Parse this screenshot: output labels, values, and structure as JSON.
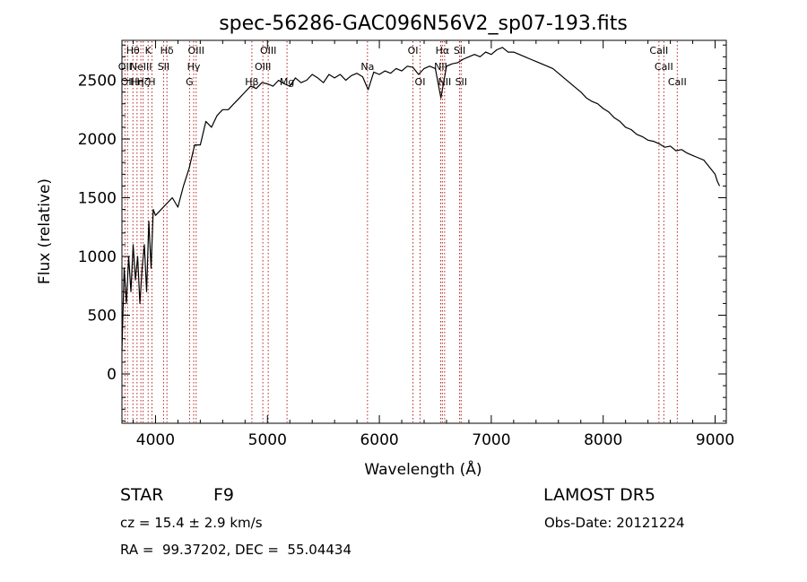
{
  "chart_data": {
    "type": "line",
    "title": "spec-56286-GAC096N56V2_sp07-193.fits",
    "xlabel": "Wavelength (Å)",
    "ylabel": "Flux (relative)",
    "xlim": [
      3700,
      9100
    ],
    "ylim": [
      -420,
      2840
    ],
    "x_ticks": [
      "4000",
      "5000",
      "6000",
      "7000",
      "8000",
      "9000"
    ],
    "y_ticks": [
      "0",
      "500",
      "1000",
      "1500",
      "2000",
      "2500"
    ],
    "grid": false,
    "series": [
      {
        "x": [
          3700,
          3720,
          3740,
          3760,
          3780,
          3800,
          3820,
          3840,
          3860,
          3880,
          3900,
          3920,
          3940,
          3960,
          3980,
          4000,
          4050,
          4100,
          4150,
          4200,
          4250,
          4300,
          4350,
          4400,
          4450,
          4500,
          4550,
          4600,
          4650,
          4700,
          4750,
          4800,
          4850,
          4900,
          4950,
          5000,
          5050,
          5100,
          5150,
          5200,
          5250,
          5300,
          5350,
          5400,
          5450,
          5500,
          5550,
          5600,
          5650,
          5700,
          5750,
          5800,
          5850,
          5900,
          5950,
          6000,
          6050,
          6100,
          6150,
          6200,
          6250,
          6300,
          6350,
          6400,
          6450,
          6500,
          6550,
          6600,
          6650,
          6700,
          6750,
          6800,
          6850,
          6900,
          6950,
          7000,
          7050,
          7100,
          7150,
          7200,
          7250,
          7300,
          7350,
          7400,
          7450,
          7500,
          7550,
          7600,
          7650,
          7700,
          7750,
          7800,
          7850,
          7900,
          7950,
          8000,
          8050,
          8100,
          8150,
          8200,
          8250,
          8300,
          8350,
          8400,
          8450,
          8500,
          8550,
          8600,
          8650,
          8700,
          8750,
          8800,
          8850,
          8900,
          8950,
          9000,
          9020,
          9040
        ],
        "y": [
          200,
          900,
          600,
          1000,
          700,
          1100,
          800,
          1000,
          600,
          900,
          1100,
          700,
          1300,
          900,
          1400,
          1350,
          1400,
          1450,
          1500,
          1420,
          1600,
          1750,
          1950,
          1950,
          2150,
          2100,
          2200,
          2250,
          2250,
          2300,
          2350,
          2400,
          2450,
          2430,
          2480,
          2470,
          2450,
          2500,
          2470,
          2450,
          2520,
          2480,
          2500,
          2550,
          2520,
          2480,
          2550,
          2520,
          2550,
          2500,
          2540,
          2560,
          2530,
          2420,
          2570,
          2550,
          2580,
          2560,
          2600,
          2580,
          2620,
          2610,
          2550,
          2600,
          2620,
          2600,
          2350,
          2620,
          2640,
          2650,
          2680,
          2700,
          2720,
          2700,
          2740,
          2720,
          2760,
          2780,
          2740,
          2740,
          2720,
          2700,
          2680,
          2660,
          2640,
          2620,
          2600,
          2560,
          2520,
          2480,
          2440,
          2400,
          2350,
          2320,
          2300,
          2260,
          2230,
          2180,
          2150,
          2100,
          2080,
          2040,
          2020,
          1990,
          1980,
          1960,
          1930,
          1940,
          1900,
          1910,
          1880,
          1860,
          1840,
          1820,
          1760,
          1700,
          1640,
          1600
        ]
      }
    ],
    "line_markers": [
      {
        "wl": 3727,
        "label": "OII",
        "row": 2
      },
      {
        "wl": 3750,
        "label": "OII",
        "row": 3
      },
      {
        "wl": 3798,
        "label": "Hθ",
        "row": 1
      },
      {
        "wl": 3835,
        "label": "Hη",
        "row": 3
      },
      {
        "wl": 3869,
        "label": "NeIII",
        "row": 2
      },
      {
        "wl": 3889,
        "label": "Hζ",
        "row": 3
      },
      {
        "wl": 3934,
        "label": "K",
        "row": 1
      },
      {
        "wl": 3968,
        "label": "H",
        "row": 3
      },
      {
        "wl": 4072,
        "label": "SII",
        "row": 2
      },
      {
        "wl": 4102,
        "label": "Hδ",
        "row": 1
      },
      {
        "wl": 4304,
        "label": "G",
        "row": 3
      },
      {
        "wl": 4341,
        "label": "Hγ",
        "row": 2
      },
      {
        "wl": 4363,
        "label": "OIII",
        "row": 1
      },
      {
        "wl": 4861,
        "label": "Hβ",
        "row": 3
      },
      {
        "wl": 4959,
        "label": "OIII",
        "row": 2
      },
      {
        "wl": 5007,
        "label": "OIII",
        "row": 1
      },
      {
        "wl": 5175,
        "label": "Mg",
        "row": 3
      },
      {
        "wl": 5894,
        "label": "Na",
        "row": 2
      },
      {
        "wl": 6300,
        "label": "OI",
        "row": 1
      },
      {
        "wl": 6364,
        "label": "OI",
        "row": 3
      },
      {
        "wl": 6548,
        "label": "NII",
        "row": 2
      },
      {
        "wl": 6563,
        "label": "Hα",
        "row": 1
      },
      {
        "wl": 6583,
        "label": "NII",
        "row": 3
      },
      {
        "wl": 6717,
        "label": "SII",
        "row": 1
      },
      {
        "wl": 6731,
        "label": "SII",
        "row": 3
      },
      {
        "wl": 8498,
        "label": "CaII",
        "row": 1
      },
      {
        "wl": 8542,
        "label": "CaII",
        "row": 2
      },
      {
        "wl": 8662,
        "label": "CaII",
        "row": 3
      }
    ]
  },
  "info": {
    "object_class": "STAR",
    "subclass": "F9",
    "survey": "LAMOST DR5",
    "redshift": "cz = 15.4 ± 2.9 km/s",
    "obs_date": "Obs-Date: 20121224",
    "coords": "RA =  99.37202, DEC =  55.04434"
  }
}
